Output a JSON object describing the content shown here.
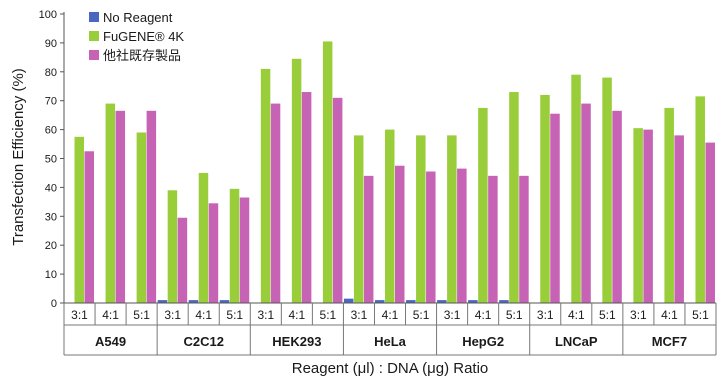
{
  "chart_data": {
    "type": "bar",
    "ylabel": "Transfection Efficiency (%)",
    "xlabel": "Reagent (μl) : DNA (μg) Ratio",
    "ylim": [
      0,
      100
    ],
    "yticks": [
      0,
      10,
      20,
      30,
      40,
      50,
      60,
      70,
      80,
      90,
      100
    ],
    "grid": false,
    "legend_position": "top-left",
    "cell_lines": [
      "A549",
      "C2C12",
      "HEK293",
      "HeLa",
      "HepG2",
      "LNCaP",
      "MCF7"
    ],
    "ratios": [
      "3:1",
      "4:1",
      "5:1"
    ],
    "categories": [
      "A549 3:1",
      "A549 4:1",
      "A549 5:1",
      "C2C12 3:1",
      "C2C12 4:1",
      "C2C12 5:1",
      "HEK293 3:1",
      "HEK293 4:1",
      "HEK293 5:1",
      "HeLa 3:1",
      "HeLa 4:1",
      "HeLa 5:1",
      "HepG2 3:1",
      "HepG2 4:1",
      "HepG2 5:1",
      "LNCaP 3:1",
      "LNCaP 4:1",
      "LNCaP 5:1",
      "MCF7 3:1",
      "MCF7 4:1",
      "MCF7 5:1"
    ],
    "series": [
      {
        "name": "No Reagent",
        "color": "#4a68c2",
        "values": [
          0,
          0,
          0,
          1,
          1,
          1,
          0,
          0,
          0,
          1.5,
          1,
          1,
          1,
          1,
          1,
          0,
          0,
          0,
          0,
          0,
          0
        ]
      },
      {
        "name": "FuGENE® 4K",
        "color": "#9acd3a",
        "values": [
          57.5,
          69,
          59,
          39,
          45,
          39.5,
          81,
          84.5,
          90.5,
          58,
          60,
          58,
          58,
          67.5,
          73,
          72,
          79,
          78,
          60.5,
          67.5,
          71.5
        ]
      },
      {
        "name": "他社既存製品",
        "color": "#c763b5",
        "values": [
          52.5,
          66.5,
          66.5,
          29.5,
          34.5,
          36.5,
          69,
          73,
          71,
          44,
          47.5,
          45.5,
          46.5,
          44,
          44,
          65.5,
          69,
          66.5,
          60,
          58,
          55.5
        ]
      }
    ]
  }
}
